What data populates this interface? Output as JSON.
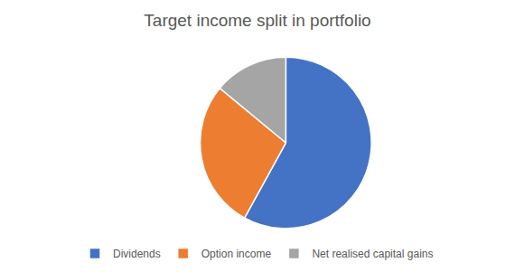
{
  "chart_data": {
    "type": "pie",
    "title": "Target income split in portfolio",
    "categories": [
      "Dividends",
      "Option income",
      "Net realised capital gains"
    ],
    "values": [
      58,
      28,
      14
    ],
    "colors": [
      "#4472c4",
      "#ed7d31",
      "#a5a5a5"
    ],
    "legend": "bottom",
    "data_labels": false
  }
}
